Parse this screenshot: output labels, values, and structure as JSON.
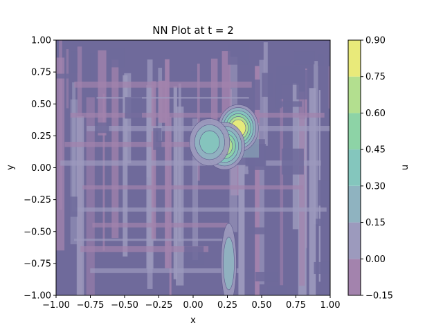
{
  "chart_data": {
    "type": "heatmap",
    "title": "NN Plot at t = 2",
    "xlabel": "x",
    "ylabel": "y",
    "xlim": [
      -1.0,
      1.0
    ],
    "ylim": [
      -1.0,
      1.0
    ],
    "x_ticks": [
      "−1.00",
      "−0.75",
      "−0.50",
      "−0.25",
      "0.00",
      "0.25",
      "0.50",
      "0.75",
      "1.00"
    ],
    "y_ticks": [
      "−1.00",
      "−0.75",
      "−0.50",
      "−0.25",
      "0.00",
      "0.25",
      "0.50",
      "0.75",
      "1.00"
    ],
    "colorbar": {
      "label": "u",
      "levels": [
        -0.15,
        0.0,
        0.15,
        0.3,
        0.45,
        0.6,
        0.75,
        0.9
      ],
      "tick_labels": [
        "−0.15",
        "0.00",
        "0.15",
        "0.30",
        "0.45",
        "0.60",
        "0.75",
        "0.90"
      ],
      "colors": [
        "#a383ad",
        "#9c9abd",
        "#8fb3c0",
        "#84c6bd",
        "#8dd3a6",
        "#b3df8f",
        "#e9ea7a"
      ]
    },
    "background_color": "#6f6a9b",
    "hotspots": [
      {
        "x": 0.33,
        "y": 0.31,
        "value": 0.78
      },
      {
        "x": 0.23,
        "y": 0.17,
        "value": 0.62
      },
      {
        "x": 0.12,
        "y": 0.2,
        "value": 0.33
      },
      {
        "x": 0.26,
        "y": -0.75,
        "value": 0.22
      }
    ]
  }
}
